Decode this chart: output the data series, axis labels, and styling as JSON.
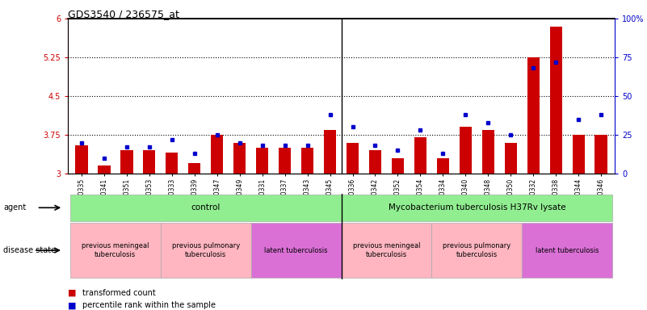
{
  "title": "GDS3540 / 236575_at",
  "samples": [
    "GSM280335",
    "GSM280341",
    "GSM280351",
    "GSM280353",
    "GSM280333",
    "GSM280339",
    "GSM280347",
    "GSM280349",
    "GSM280331",
    "GSM280337",
    "GSM280343",
    "GSM280345",
    "GSM280336",
    "GSM280342",
    "GSM280352",
    "GSM280354",
    "GSM280334",
    "GSM280340",
    "GSM280348",
    "GSM280350",
    "GSM280332",
    "GSM280338",
    "GSM280344",
    "GSM280346"
  ],
  "transformed_count": [
    3.55,
    3.15,
    3.45,
    3.45,
    3.4,
    3.2,
    3.75,
    3.6,
    3.5,
    3.5,
    3.5,
    3.85,
    3.6,
    3.45,
    3.3,
    3.7,
    3.3,
    3.9,
    3.85,
    3.6,
    5.25,
    5.85,
    3.75,
    3.75
  ],
  "percentile_rank": [
    20,
    10,
    17,
    17,
    22,
    13,
    25,
    20,
    18,
    18,
    18,
    38,
    30,
    18,
    15,
    28,
    13,
    38,
    33,
    25,
    68,
    72,
    35,
    38
  ],
  "ylim_left": [
    3.0,
    6.0
  ],
  "ylim_right": [
    0,
    100
  ],
  "yticks_left": [
    3.0,
    3.75,
    4.5,
    5.25,
    6.0
  ],
  "ytick_labels_left": [
    "3",
    "3.75",
    "4.5",
    "5.25",
    "6"
  ],
  "yticks_right": [
    0,
    25,
    50,
    75,
    100
  ],
  "ytick_labels_right": [
    "0",
    "25",
    "50",
    "75",
    "100%"
  ],
  "hlines": [
    3.75,
    4.5,
    5.25
  ],
  "bar_color": "#cc0000",
  "dot_color": "#0000cc",
  "bar_width": 0.55,
  "agent_groups": [
    {
      "label": "control",
      "start": 0,
      "end": 11,
      "color": "#90ee90"
    },
    {
      "label": "Mycobacterium tuberculosis H37Rv lysate",
      "start": 12,
      "end": 23,
      "color": "#90ee90"
    }
  ],
  "disease_groups": [
    {
      "label": "previous meningeal\ntuberculosis",
      "start": 0,
      "end": 3,
      "color": "#ffb6c1"
    },
    {
      "label": "previous pulmonary\ntuberculosis",
      "start": 4,
      "end": 7,
      "color": "#ffb6c1"
    },
    {
      "label": "latent tuberculosis",
      "start": 8,
      "end": 11,
      "color": "#da70d6"
    },
    {
      "label": "previous meningeal\ntuberculosis",
      "start": 12,
      "end": 15,
      "color": "#ffb6c1"
    },
    {
      "label": "previous pulmonary\ntuberculosis",
      "start": 16,
      "end": 19,
      "color": "#ffb6c1"
    },
    {
      "label": "latent tuberculosis",
      "start": 20,
      "end": 23,
      "color": "#da70d6"
    }
  ],
  "legend_items": [
    {
      "label": "transformed count",
      "color": "#cc0000"
    },
    {
      "label": "percentile rank within the sample",
      "color": "#0000cc"
    }
  ],
  "agent_label": "agent",
  "disease_label": "disease state"
}
